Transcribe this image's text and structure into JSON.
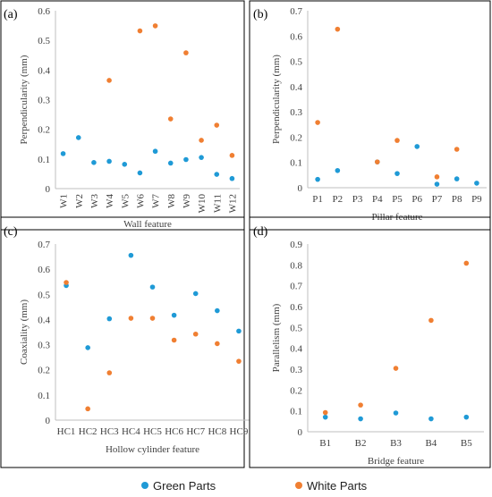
{
  "colors": {
    "green": "#1f9ad6",
    "white": "#f07f32",
    "axis": "#bfbfbf",
    "frame": "#000000",
    "text": "#404040"
  },
  "legend": {
    "green_label": "Green Parts",
    "white_label": "White Parts"
  },
  "chart_data": [
    {
      "type": "scatter",
      "panel_label": "(a)",
      "xlabel": "Wall feature",
      "ylabel": "Perpendicularity (mm)",
      "ylim": [
        0,
        0.6
      ],
      "yticks": [
        "0",
        "0.1",
        "0.2",
        "0.3",
        "0.4",
        "0.5",
        "0.6"
      ],
      "categories": [
        "W1",
        "W2",
        "W3",
        "W4",
        "W5",
        "W6",
        "W7",
        "W8",
        "W9",
        "W10",
        "W11",
        "W12"
      ],
      "series": [
        {
          "name": "Green Parts",
          "values": [
            0.118,
            0.172,
            0.088,
            0.092,
            0.082,
            0.053,
            0.126,
            0.086,
            0.098,
            0.105,
            0.048,
            0.034
          ]
        },
        {
          "name": "White Parts",
          "values": [
            null,
            null,
            null,
            0.365,
            null,
            0.532,
            0.549,
            0.235,
            0.458,
            0.163,
            0.214,
            0.112
          ]
        }
      ]
    },
    {
      "type": "scatter",
      "panel_label": "(b)",
      "xlabel": "Pillar feature",
      "ylabel": "Perpendicularity (mm)",
      "ylim": [
        0,
        0.7
      ],
      "yticks": [
        "0",
        "0.1",
        "0.2",
        "0.3",
        "0.4",
        "0.5",
        "0.6",
        "0.7"
      ],
      "categories": [
        "P1",
        "P2",
        "P3",
        "P4",
        "P5",
        "P6",
        "P7",
        "P8",
        "P9"
      ],
      "series": [
        {
          "name": "Green Parts",
          "values": [
            0.033,
            0.068,
            null,
            0.102,
            0.056,
            0.163,
            0.014,
            0.035,
            0.018
          ]
        },
        {
          "name": "White Parts",
          "values": [
            0.258,
            0.627,
            null,
            0.102,
            0.187,
            null,
            0.043,
            0.152,
            null
          ]
        }
      ]
    },
    {
      "type": "scatter",
      "panel_label": "(c)",
      "xlabel": "Hollow cylinder feature",
      "ylabel": "Coaxiality (mm)",
      "ylim": [
        0,
        0.7
      ],
      "yticks": [
        "0",
        "0.1",
        "0.2",
        "0.3",
        "0.4",
        "0.5",
        "0.6",
        "0.7"
      ],
      "categories": [
        "HC1",
        "HC2",
        "HC3",
        "HC4",
        "HC5",
        "HC6",
        "HC7",
        "HC8",
        "HC9"
      ],
      "series": [
        {
          "name": "Green Parts",
          "values": [
            0.535,
            0.288,
            0.403,
            0.655,
            0.529,
            0.417,
            0.503,
            0.435,
            0.354
          ]
        },
        {
          "name": "White Parts",
          "values": [
            0.547,
            0.045,
            0.188,
            0.405,
            0.405,
            0.318,
            0.342,
            0.304,
            0.234
          ]
        }
      ]
    },
    {
      "type": "scatter",
      "panel_label": "(d)",
      "xlabel": "Bridge feature",
      "ylabel": "Parallelism (mm)",
      "ylim": [
        0,
        0.9
      ],
      "yticks": [
        "0",
        "0.1",
        "0.2",
        "0.3",
        "0.4",
        "0.5",
        "0.6",
        "0.7",
        "0.8",
        "0.9"
      ],
      "categories": [
        "B1",
        "B2",
        "B3",
        "B4",
        "B5"
      ],
      "series": [
        {
          "name": "Green Parts",
          "values": [
            0.07,
            0.062,
            0.09,
            0.062,
            0.07
          ]
        },
        {
          "name": "White Parts",
          "values": [
            0.092,
            0.128,
            0.304,
            0.534,
            0.808
          ]
        }
      ]
    }
  ]
}
